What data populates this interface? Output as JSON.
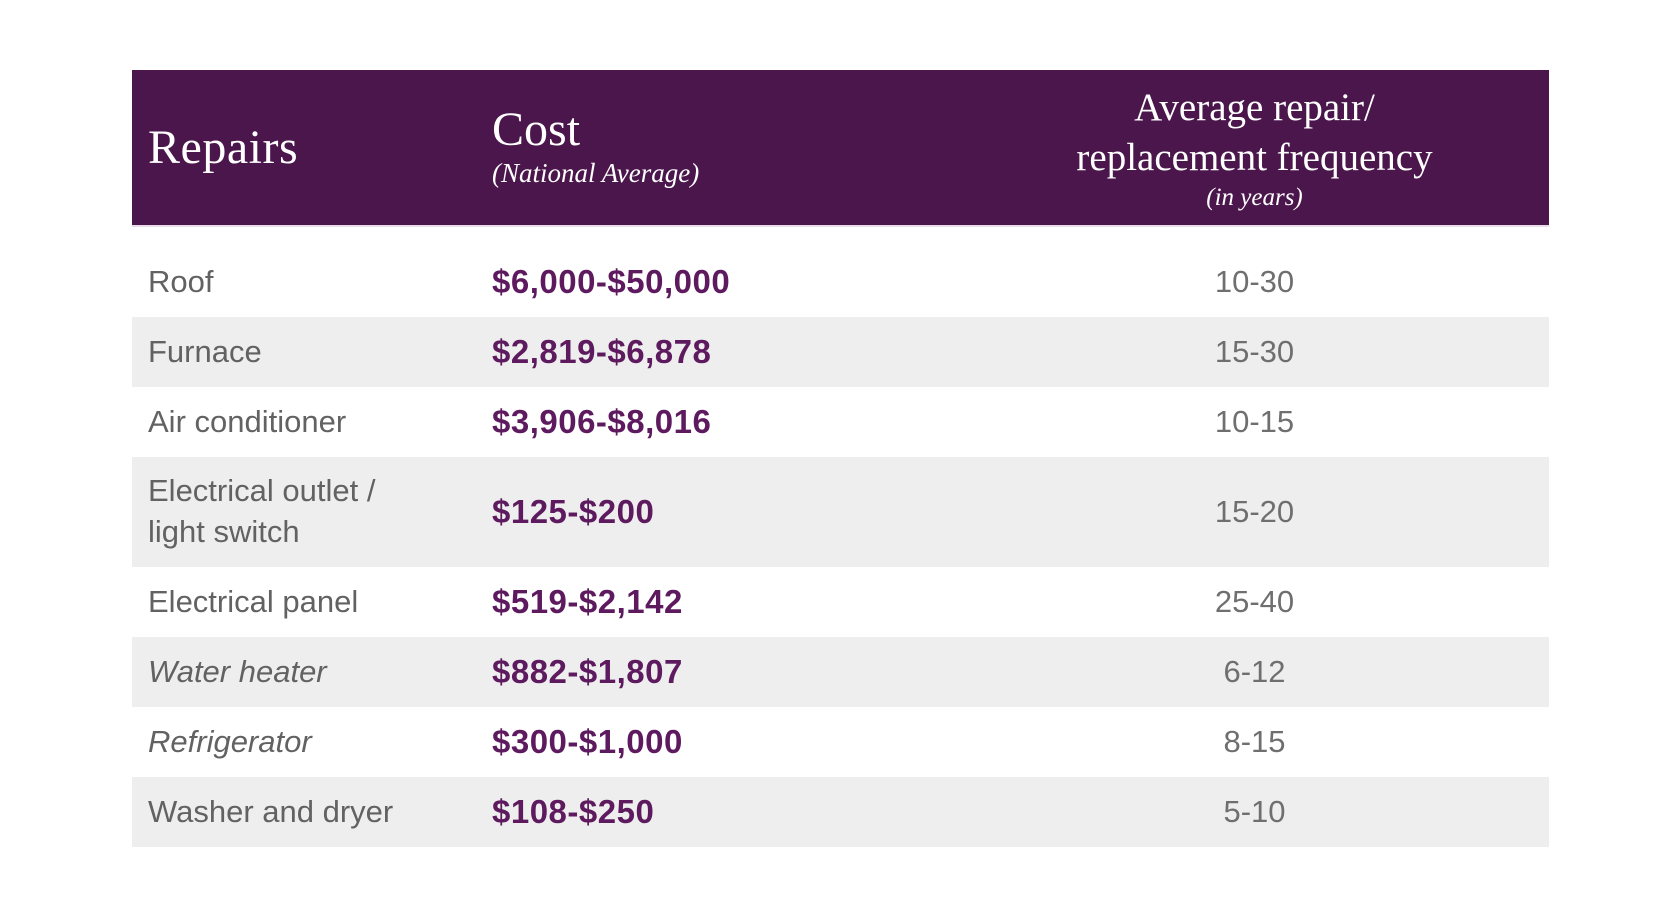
{
  "table": {
    "header": {
      "repairs_label": "Repairs",
      "cost_label": "Cost",
      "cost_sublabel": "(National Average)",
      "frequency_label": "Average repair/\nreplacement frequency",
      "frequency_sublabel": "(in years)"
    },
    "colors": {
      "page_bg": "#FFFFFF",
      "header_bg": "#4B164B",
      "header_text": "#FFFFFF",
      "cost_value": "#5E1A5E",
      "repair_label": "#626262",
      "frequency_value": "#6F6F6F",
      "stripe": "#EEEEEE"
    },
    "rows": [
      {
        "repair": "Roof",
        "cost": "$6,000-$50,000",
        "frequency": "10-30",
        "italic": false
      },
      {
        "repair": "Furnace",
        "cost": "$2,819-$6,878",
        "frequency": "15-30",
        "italic": false
      },
      {
        "repair": "Air conditioner",
        "cost": "$3,906-$8,016",
        "frequency": "10-15",
        "italic": false
      },
      {
        "repair": "Electrical outlet /\nlight switch",
        "cost": "$125-$200",
        "frequency": "15-20",
        "italic": false
      },
      {
        "repair": "Electrical panel",
        "cost": "$519-$2,142",
        "frequency": "25-40",
        "italic": false
      },
      {
        "repair": "Water heater",
        "cost": "$882-$1,807",
        "frequency": "6-12",
        "italic": true
      },
      {
        "repair": "Refrigerator",
        "cost": "$300-$1,000",
        "frequency": "8-15",
        "italic": true
      },
      {
        "repair": "Washer and dryer",
        "cost": "$108-$250",
        "frequency": "5-10",
        "italic": false
      }
    ]
  },
  "chart_data": {
    "type": "table",
    "title": "",
    "columns": [
      "Repairs",
      "Cost (National Average)",
      "Average repair/replacement frequency (in years)"
    ],
    "rows": [
      [
        "Roof",
        "$6,000-$50,000",
        "10-30"
      ],
      [
        "Furnace",
        "$2,819-$6,878",
        "15-30"
      ],
      [
        "Air conditioner",
        "$3,906-$8,016",
        "10-15"
      ],
      [
        "Electrical outlet / light switch",
        "$125-$200",
        "15-20"
      ],
      [
        "Electrical panel",
        "$519-$2,142",
        "25-40"
      ],
      [
        "Water heater",
        "$882-$1,807",
        "6-12"
      ],
      [
        "Refrigerator",
        "$300-$1,000",
        "8-15"
      ],
      [
        "Washer and dryer",
        "$108-$250",
        "5-10"
      ]
    ],
    "layout_hints": {
      "striped_rows": "even rows shaded light gray",
      "cost_column_style": "bold dark plum, left-aligned",
      "frequency_column_style": "gray, center-aligned",
      "italic_row_labels": [
        "Water heater",
        "Refrigerator"
      ]
    }
  }
}
